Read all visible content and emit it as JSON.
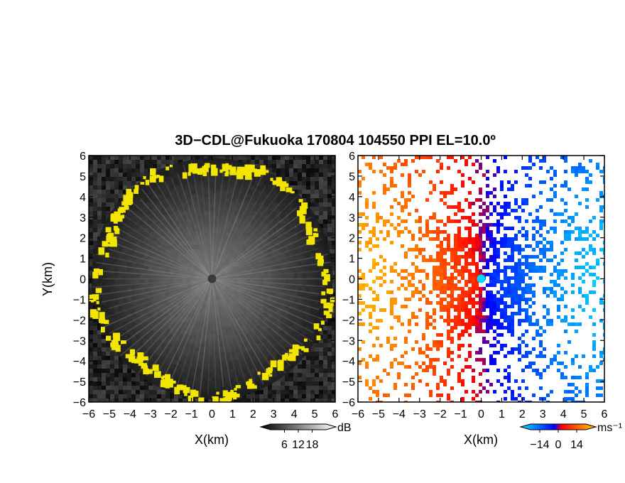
{
  "figure": {
    "title": "3D−CDL@Fukuoka 170804 104550 PPI EL=10.0º"
  },
  "chart_data": [
    {
      "type": "heatmap",
      "name": "backscatter",
      "xlabel": "X(km)",
      "ylabel": "Y(km)",
      "xlim": [
        -6,
        6
      ],
      "ylim": [
        -6,
        6
      ],
      "xticks": [
        "−6",
        "−5",
        "−4",
        "−3",
        "−2",
        "−1",
        "0",
        "1",
        "2",
        "3",
        "4",
        "5",
        "6"
      ],
      "yticks": [
        "−6",
        "−5",
        "−4",
        "−3",
        "−2",
        "−1",
        "0",
        "1",
        "2",
        "3",
        "4",
        "5",
        "6"
      ],
      "colorbar": {
        "unit": "dB",
        "ticks": [
          "6",
          "12",
          "18"
        ],
        "tick_values": [
          6,
          12,
          18
        ],
        "range": [
          0,
          24
        ],
        "colors": [
          "#000000",
          "#ffffff"
        ]
      },
      "clutter_color": "#f2e600",
      "observed_radius_km": 6
    },
    {
      "type": "heatmap",
      "name": "radial_velocity",
      "xlabel": "X(km)",
      "xlim": [
        -6,
        6
      ],
      "ylim": [
        -6,
        6
      ],
      "xticks": [
        "−6",
        "−5",
        "−4",
        "−3",
        "−2",
        "−1",
        "0",
        "1",
        "2",
        "3",
        "4",
        "5",
        "6"
      ],
      "yticks": [
        "−6",
        "−5",
        "−4",
        "−3",
        "−2",
        "−1",
        "0",
        "1",
        "2",
        "3",
        "4",
        "5",
        "6"
      ],
      "colorbar": {
        "unit": "ms⁻¹",
        "ticks": [
          "−14",
          "0",
          "14"
        ],
        "tick_values": [
          -14,
          0,
          14
        ],
        "range": [
          -21,
          21
        ],
        "colors": [
          "#00e6ff",
          "#0000ff",
          "#ff0000",
          "#ffcc00"
        ]
      }
    }
  ]
}
